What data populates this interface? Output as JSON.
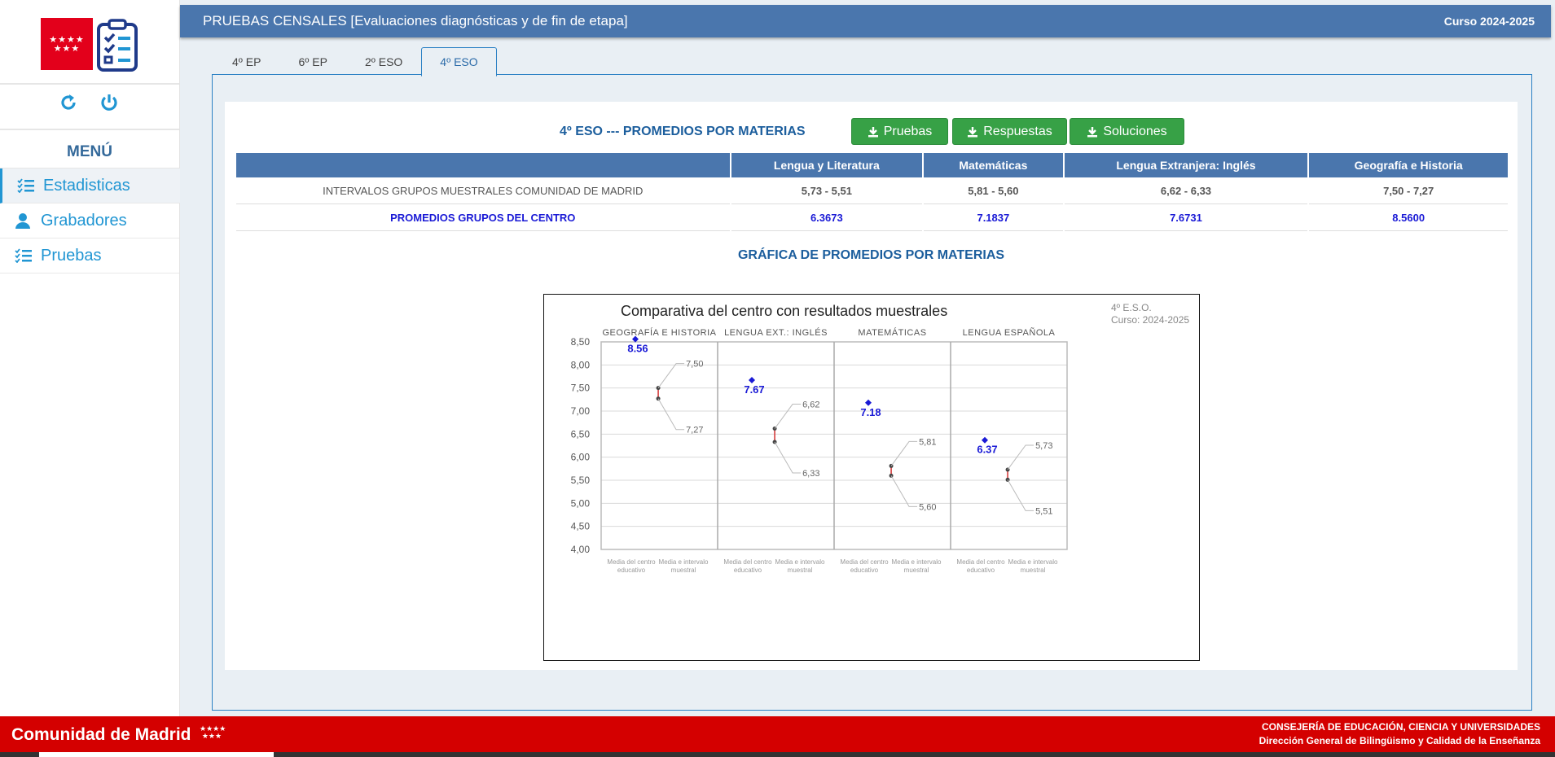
{
  "header": {
    "title": "PRUEBAS CENSALES [Evaluaciones diagnósticas y de fin de etapa]",
    "course": "Curso 2024-2025"
  },
  "sidebar": {
    "menu_title": "MENÚ",
    "items": [
      {
        "label": "Estadisticas",
        "icon": "list-check-icon"
      },
      {
        "label": "Grabadores",
        "icon": "user-icon"
      },
      {
        "label": "Pruebas",
        "icon": "list-check-icon"
      }
    ]
  },
  "tabs": [
    "4º EP",
    "6º EP",
    "2º ESO",
    "4º ESO"
  ],
  "active_tab": "4º ESO",
  "card": {
    "title": "4º ESO --- PROMEDIOS POR MATERIAS",
    "buttons": {
      "pruebas": "Pruebas",
      "respuestas": "Respuestas",
      "soluciones": "Soluciones"
    },
    "table": {
      "headers": [
        "",
        "Lengua y Literatura",
        "Matemáticas",
        "Lengua Extranjera: Inglés",
        "Geografía e Historia"
      ],
      "rows": [
        {
          "label": "INTERVALOS GRUPOS MUESTRALES COMUNIDAD DE MADRID",
          "values": [
            "5,73 - 5,51",
            "5,81 - 5,60",
            "6,62 - 6,33",
            "7,50 - 7,27"
          ]
        },
        {
          "label": "PROMEDIOS GRUPOS DEL CENTRO",
          "values": [
            "6.3673",
            "7.1837",
            "7.6731",
            "8.5600"
          ]
        }
      ]
    },
    "chart_caption": "GRÁFICA DE PROMEDIOS POR MATERIAS"
  },
  "chart_data": {
    "type": "scatter",
    "title": "Comparativa del centro con resultados muestrales",
    "corner_line1": "4º E.S.O.",
    "corner_line2": "Curso: 2024-2025",
    "ylim": [
      4.0,
      8.5
    ],
    "y_ticks": [
      "4,00",
      "4,50",
      "5,00",
      "5,50",
      "6,00",
      "6,50",
      "7,00",
      "7,50",
      "8,00",
      "8,50"
    ],
    "x_sublabels": [
      "Media del centro educativo",
      "Media e intervalo muestral"
    ],
    "panels": [
      {
        "name": "GEOGRAFÍA E HISTORIA",
        "centro": 8.56,
        "centro_label": "8.56",
        "high": 7.5,
        "high_label": "7,50",
        "low": 7.27,
        "low_label": "7,27"
      },
      {
        "name": "LENGUA EXT.: INGLÉS",
        "centro": 7.67,
        "centro_label": "7.67",
        "high": 6.62,
        "high_label": "6,62",
        "low": 6.33,
        "low_label": "6,33"
      },
      {
        "name": "MATEMÁTICAS",
        "centro": 7.18,
        "centro_label": "7.18",
        "high": 5.81,
        "high_label": "5,81",
        "low": 5.6,
        "low_label": "5,60"
      },
      {
        "name": "LENGUA ESPAÑOLA",
        "centro": 6.37,
        "centro_label": "6.37",
        "high": 5.73,
        "high_label": "5,73",
        "low": 5.51,
        "low_label": "5,51"
      }
    ],
    "colors": {
      "centro": "#1a1ad6",
      "interval": "#444444",
      "mean": "#d33030",
      "grid": "#d9d9d9"
    }
  },
  "footer": {
    "brand": "Comunidad de Madrid",
    "right_line1": "CONSEJERÍA DE EDUCACIÓN, CIENCIA Y UNIVERSIDADES",
    "right_line2": "Dirección General de Bilingüismo y Calidad de la Enseñanza"
  }
}
